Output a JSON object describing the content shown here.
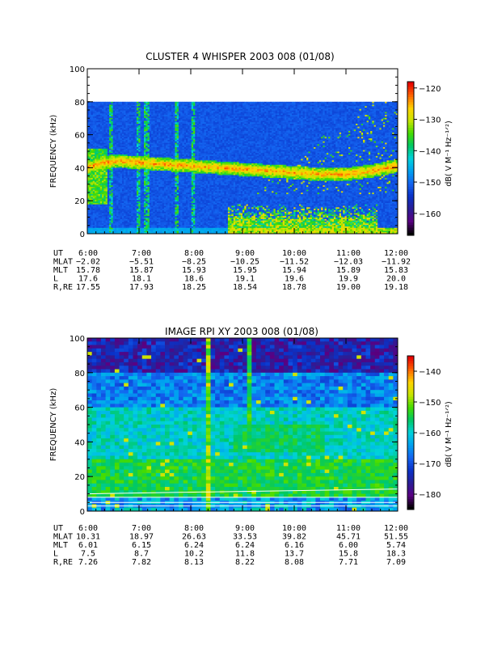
{
  "panels": [
    {
      "id": "whisper",
      "title": "CLUSTER 4 WHISPER 2003 008 (01/08)",
      "ylabel": "FREQUENCY (kHz)",
      "colorbar_label": "dB( V M⁻¹ Hz⁻¹ᐟ²)",
      "chart_data": {
        "type": "heatmap",
        "title": "CLUSTER 4 WHISPER 2003 008 (01/08)",
        "xlabel": "",
        "ylabel": "FREQUENCY (kHz)",
        "x_range_hours": [
          6,
          12
        ],
        "ylim": [
          0,
          100
        ],
        "data_ymax": 80,
        "yticks": [
          0,
          20,
          40,
          60,
          80,
          100
        ],
        "xticks": [
          "6:00",
          "7:00",
          "8:00",
          "9:00",
          "10:00",
          "11:00",
          "12:00"
        ],
        "colorbar": {
          "range": [
            -167,
            -118
          ],
          "ticks": [
            -120,
            -130,
            -140,
            -150,
            -160
          ],
          "label": "dB( V M-1 Hz-1/2)"
        },
        "features": {
          "background_db": -158,
          "plasma_line_khz": [
            [
              6.0,
              40
            ],
            [
              6.3,
              43
            ],
            [
              6.6,
              44
            ],
            [
              7.0,
              43
            ],
            [
              7.5,
              42
            ],
            [
              8.0,
              41
            ],
            [
              8.5,
              40
            ],
            [
              9.0,
              39
            ],
            [
              9.5,
              38
            ],
            [
              10.0,
              37
            ],
            [
              10.5,
              36
            ],
            [
              11.0,
              36
            ],
            [
              11.5,
              38
            ],
            [
              12.0,
              41
            ]
          ],
          "broadband_bursts_hours": [
            6.45,
            7.0,
            7.15,
            7.72,
            8.05
          ],
          "low_freq_band": {
            "start_hour": 8.7,
            "end_hour": 11.6,
            "max_khz": 18
          }
        }
      },
      "ephemeris": {
        "UT": [
          "6:00",
          "7:00",
          "8:00",
          "9:00",
          "10:00",
          "11:00",
          "12:00"
        ],
        "MLAT": [
          "-2.02",
          "-5.51",
          "-8.25",
          "-10.25",
          "-11.52",
          "-12.03",
          "-11.92"
        ],
        "MLT": [
          "15.78",
          "15.87",
          "15.93",
          "15.95",
          "15.94",
          "15.89",
          "15.83"
        ],
        "L": [
          "17.6",
          "18.1",
          "18.6",
          "19.1",
          "19.6",
          "19.9",
          "20.0"
        ],
        "R,RE": [
          "17.55",
          "17.93",
          "18.25",
          "18.54",
          "18.78",
          "19.00",
          "19.18"
        ]
      }
    },
    {
      "id": "rpi",
      "title": "IMAGE RPI XY 2003 008 (01/08)",
      "ylabel": "FREQUENCY (kHz)",
      "colorbar_label": "dB( V M⁻¹ Hz⁻¹ᐟ²)",
      "chart_data": {
        "type": "heatmap",
        "title": "IMAGE RPI XY 2003 008 (01/08)",
        "xlabel": "",
        "ylabel": "FREQUENCY (kHz)",
        "x_range_hours": [
          6,
          12
        ],
        "ylim": [
          0,
          100
        ],
        "data_ymax": 100,
        "yticks": [
          0,
          20,
          40,
          60,
          80,
          100
        ],
        "xticks": [
          "6:00",
          "7:00",
          "8:00",
          "9:00",
          "10:00",
          "11:00",
          "12:00"
        ],
        "colorbar": {
          "range": [
            -185,
            -135
          ],
          "ticks": [
            -140,
            -150,
            -160,
            -170,
            -180
          ],
          "label": "dB( V M-1 Hz-1/2)"
        },
        "features": {
          "background_db": -178,
          "enhanced_band_khz": [
            8,
            60
          ],
          "burst_hours": [
            8.35,
            9.15
          ],
          "white_lines_khz": [
            3,
            5,
            8,
            10
          ]
        }
      },
      "ephemeris": {
        "UT": [
          "6:00",
          "7:00",
          "8:00",
          "9:00",
          "10:00",
          "11:00",
          "12:00"
        ],
        "MLAT": [
          "10.31",
          "18.97",
          "26.63",
          "33.53",
          "39.82",
          "45.71",
          "51.55"
        ],
        "MLT": [
          "6.01",
          "6.15",
          "6.24",
          "6.24",
          "6.16",
          "6.00",
          "5.74"
        ],
        "L": [
          "7.5",
          "8.7",
          "10.2",
          "11.8",
          "13.7",
          "15.8",
          "18.3"
        ],
        "R,RE": [
          "7.26",
          "7.82",
          "8.13",
          "8.22",
          "8.08",
          "7.71",
          "7.09"
        ]
      }
    }
  ],
  "ephemeris_labels": [
    "UT",
    "MLAT",
    "MLT",
    "L",
    "R,RE"
  ],
  "palette": [
    "#000000",
    "#5a0082",
    "#2a1e96",
    "#0a32c8",
    "#1464f0",
    "#00a0f0",
    "#00d2dc",
    "#00c864",
    "#46dc00",
    "#c8e600",
    "#ffd200",
    "#ff6400",
    "#e60000"
  ]
}
